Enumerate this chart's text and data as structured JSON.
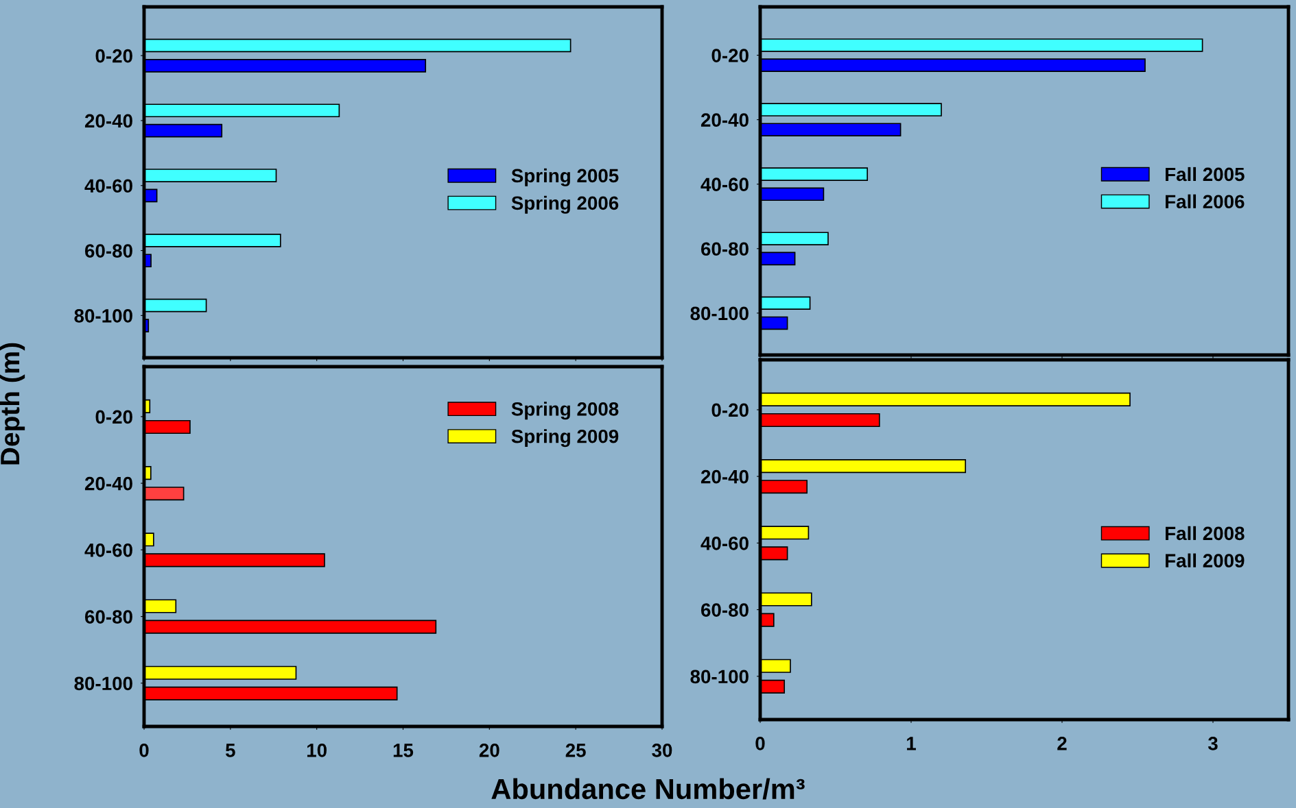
{
  "chart_data": [
    {
      "type": "bar",
      "orientation": "horizontal",
      "categories": [
        "0-20",
        "20-40",
        "40-60",
        "60-80",
        "80-100"
      ],
      "ylabel": "Depth (m)",
      "xlim": [
        0,
        30
      ],
      "xticks": [
        0,
        5,
        10,
        15,
        20,
        25,
        30
      ],
      "tick_labels": "y",
      "legend": "right",
      "grid": false,
      "series": [
        {
          "name": "Spring 2005",
          "color": "#0000ff",
          "values": [
            16.3,
            4.5,
            0.74,
            0.4,
            0.25
          ]
        },
        {
          "name": "Spring 2006",
          "color": "#40ffff",
          "values": [
            24.7,
            11.3,
            7.65,
            7.9,
            3.6
          ]
        }
      ]
    },
    {
      "type": "bar",
      "orientation": "horizontal",
      "categories": [
        "0-20",
        "20-40",
        "40-60",
        "60-80",
        "80-100"
      ],
      "xlim": [
        0,
        3.5
      ],
      "xticks": [
        0,
        1,
        2,
        3
      ],
      "tick_labels": "y",
      "legend": "right",
      "grid": false,
      "series": [
        {
          "name": "Fall 2005",
          "color": "#0000ff",
          "values": [
            2.55,
            0.93,
            0.42,
            0.23,
            0.18
          ]
        },
        {
          "name": "Fall 2006",
          "color": "#40ffff",
          "values": [
            2.93,
            1.2,
            0.71,
            0.45,
            0.33
          ]
        }
      ]
    },
    {
      "type": "bar",
      "orientation": "horizontal",
      "categories": [
        "0-20",
        "20-40",
        "40-60",
        "60-80",
        "80-100"
      ],
      "xlabel": "Abundance Number/m³",
      "xlim": [
        0,
        30
      ],
      "xticks": [
        0,
        5,
        10,
        15,
        20,
        25,
        30
      ],
      "legend": "top right",
      "grid": false,
      "series": [
        {
          "name": "Spring 2008",
          "color": "#ff0000",
          "colors": [
            "#ff0000",
            "#ff4040",
            "#ff0000",
            "#ff0000",
            "#ff0000"
          ],
          "values": [
            2.66,
            2.29,
            10.45,
            16.9,
            14.65
          ]
        },
        {
          "name": "Spring 2009",
          "color": "#ffff00",
          "values": [
            0.33,
            0.39,
            0.55,
            1.84,
            8.8
          ]
        }
      ]
    },
    {
      "type": "bar",
      "orientation": "horizontal",
      "categories": [
        "0-20",
        "20-40",
        "40-60",
        "60-80",
        "80-100"
      ],
      "xlim": [
        0,
        3.5
      ],
      "xticks": [
        0,
        1,
        2,
        3
      ],
      "legend": "right",
      "grid": false,
      "series": [
        {
          "name": "Fall 2008",
          "color": "#ff0000",
          "values": [
            0.79,
            0.31,
            0.18,
            0.09,
            0.16
          ]
        },
        {
          "name": "Fall 2009",
          "color": "#ffff00",
          "values": [
            2.45,
            1.36,
            0.32,
            0.34,
            0.2
          ]
        }
      ]
    }
  ]
}
